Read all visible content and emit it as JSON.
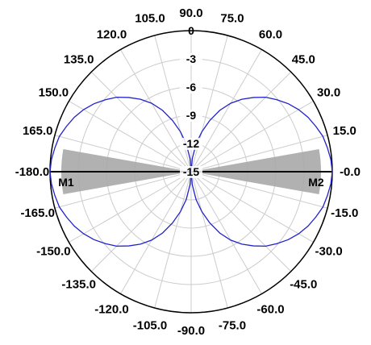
{
  "chart_data": {
    "type": "polar",
    "angle_ticks": [
      {
        "deg": 90,
        "label": "90.0"
      },
      {
        "deg": 105,
        "label": "105.0"
      },
      {
        "deg": 120,
        "label": "120.0"
      },
      {
        "deg": 135,
        "label": "135.0"
      },
      {
        "deg": 150,
        "label": "150.0"
      },
      {
        "deg": 165,
        "label": "165.0"
      },
      {
        "deg": 180,
        "label": "-180.0"
      },
      {
        "deg": -165,
        "label": "-165.0"
      },
      {
        "deg": -150,
        "label": "-150.0"
      },
      {
        "deg": -135,
        "label": "-135.0"
      },
      {
        "deg": -120,
        "label": "-120.0"
      },
      {
        "deg": -105,
        "label": "-105.0"
      },
      {
        "deg": -90,
        "label": "-90.0"
      },
      {
        "deg": -75,
        "label": "-75.0"
      },
      {
        "deg": -60,
        "label": "-60.0"
      },
      {
        "deg": -45,
        "label": "-45.0"
      },
      {
        "deg": -30,
        "label": "-30.0"
      },
      {
        "deg": -15,
        "label": "-15.0"
      },
      {
        "deg": 0,
        "label": "-0.0"
      },
      {
        "deg": 15,
        "label": "15.0"
      },
      {
        "deg": 30,
        "label": "30.0"
      },
      {
        "deg": 45,
        "label": "45.0"
      },
      {
        "deg": 60,
        "label": "60.0"
      },
      {
        "deg": 75,
        "label": "75.0"
      }
    ],
    "radial_ticks": [
      {
        "value": 0,
        "label": "0"
      },
      {
        "value": -3,
        "label": "-3"
      },
      {
        "value": -6,
        "label": "-6"
      },
      {
        "value": -9,
        "label": "-9"
      },
      {
        "value": -12,
        "label": "-12"
      },
      {
        "value": -15,
        "label": "-15"
      }
    ],
    "rlim": [
      -15,
      0
    ],
    "markers": [
      {
        "label": "M1",
        "angle": 180
      },
      {
        "label": "M2",
        "angle": 0
      }
    ],
    "shaded_sectors": [
      {
        "center": 0,
        "half_width": 10,
        "r_max": -1.2
      },
      {
        "center": 180,
        "half_width": 10,
        "r_max": -1.2
      }
    ],
    "series": [
      {
        "color": "#2222cc",
        "points": [
          [
            0,
            0
          ],
          [
            5,
            -0.1
          ],
          [
            10,
            -0.3
          ],
          [
            15,
            -0.5
          ],
          [
            20,
            -0.9
          ],
          [
            25,
            -1.3
          ],
          [
            30,
            -1.8
          ],
          [
            35,
            -2.4
          ],
          [
            40,
            -3.1
          ],
          [
            45,
            -3.8
          ],
          [
            50,
            -4.7
          ],
          [
            55,
            -5.6
          ],
          [
            60,
            -6.6
          ],
          [
            65,
            -7.8
          ],
          [
            70,
            -9.2
          ],
          [
            75,
            -10.6
          ],
          [
            80,
            -12.0
          ],
          [
            85,
            -13.6
          ],
          [
            90,
            -15
          ],
          [
            95,
            -13.6
          ],
          [
            100,
            -12.0
          ],
          [
            105,
            -10.6
          ],
          [
            110,
            -9.2
          ],
          [
            115,
            -7.8
          ],
          [
            120,
            -6.6
          ],
          [
            125,
            -5.6
          ],
          [
            130,
            -4.7
          ],
          [
            135,
            -3.8
          ],
          [
            140,
            -3.1
          ],
          [
            145,
            -2.4
          ],
          [
            150,
            -1.8
          ],
          [
            155,
            -1.3
          ],
          [
            160,
            -0.9
          ],
          [
            165,
            -0.5
          ],
          [
            170,
            -0.3
          ],
          [
            175,
            -0.1
          ],
          [
            180,
            0
          ],
          [
            185,
            -0.1
          ],
          [
            190,
            -0.3
          ],
          [
            195,
            -0.5
          ],
          [
            200,
            -0.9
          ],
          [
            205,
            -1.3
          ],
          [
            210,
            -1.8
          ],
          [
            215,
            -2.4
          ],
          [
            220,
            -3.1
          ],
          [
            225,
            -3.8
          ],
          [
            230,
            -4.7
          ],
          [
            235,
            -5.6
          ],
          [
            240,
            -6.6
          ],
          [
            245,
            -7.8
          ],
          [
            250,
            -9.2
          ],
          [
            255,
            -10.6
          ],
          [
            260,
            -12.0
          ],
          [
            265,
            -13.6
          ],
          [
            270,
            -15
          ],
          [
            275,
            -13.6
          ],
          [
            280,
            -12.0
          ],
          [
            285,
            -10.6
          ],
          [
            290,
            -9.2
          ],
          [
            295,
            -7.8
          ],
          [
            300,
            -6.6
          ],
          [
            305,
            -5.6
          ],
          [
            310,
            -4.7
          ],
          [
            315,
            -3.8
          ],
          [
            320,
            -3.1
          ],
          [
            325,
            -2.4
          ],
          [
            330,
            -1.8
          ],
          [
            335,
            -1.3
          ],
          [
            340,
            -0.9
          ],
          [
            345,
            -0.5
          ],
          [
            350,
            -0.3
          ],
          [
            355,
            -0.1
          ]
        ]
      }
    ],
    "grid": true,
    "legend": "none"
  }
}
